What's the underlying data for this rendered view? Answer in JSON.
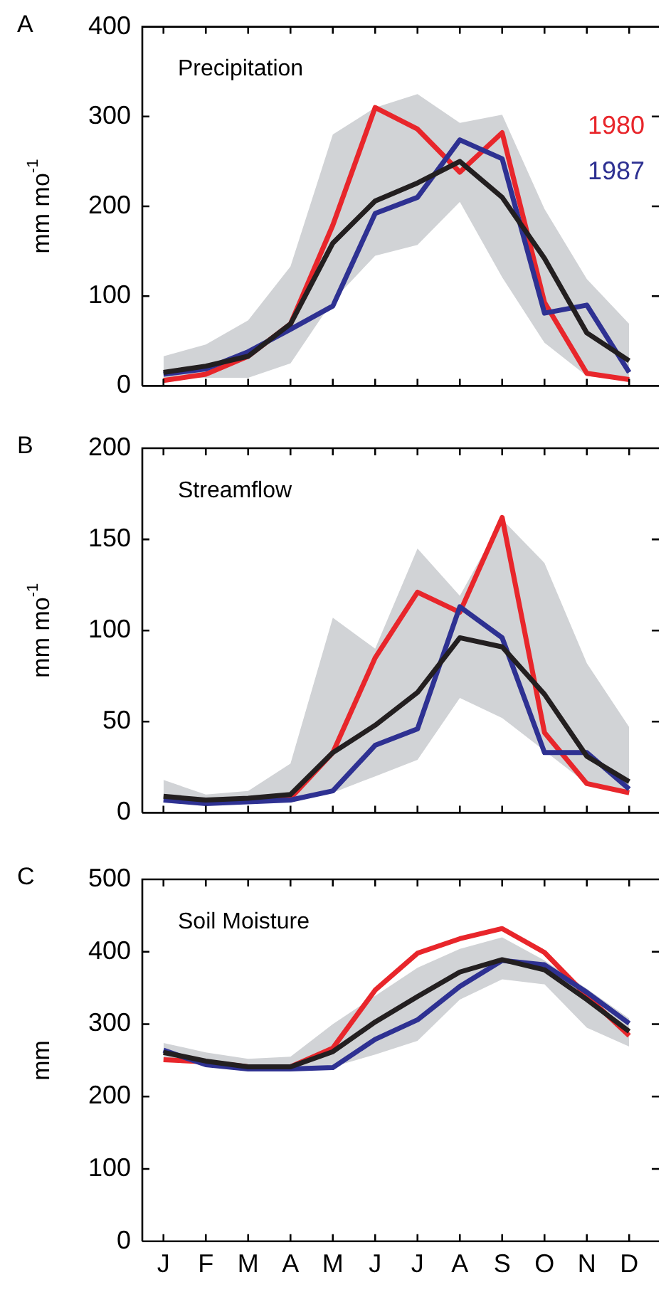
{
  "chart_data": [
    {
      "type": "line",
      "title": "Precipitation",
      "ylabel": "mm mo$^{-1}$",
      "annotations": [
        "A"
      ],
      "categories": [
        null,
        null,
        null,
        null,
        null,
        null,
        null,
        null,
        null,
        null,
        null,
        null
      ],
      "ylim": [
        0,
        400
      ],
      "yticks": [
        0,
        100,
        200,
        300,
        400
      ],
      "tick_labels": "y",
      "grid": false,
      "legend": false,
      "series": [
        {
          "name": "1980",
          "color": "#e8262b",
          "values": [
            6,
            13,
            33,
            69,
            179,
            310,
            286,
            238,
            282,
            93,
            14,
            7
          ]
        },
        {
          "name": "1987",
          "color": "#2e3192",
          "values": [
            13,
            19,
            38,
            63,
            89,
            192,
            210,
            274,
            253,
            81,
            90,
            15
          ]
        },
        {
          "color": "#231f20",
          "values": [
            15,
            22,
            33,
            69,
            159,
            206,
            226,
            250,
            210,
            142,
            59,
            28
          ],
          "lower": [
            9,
            9,
            9,
            25,
            95,
            145,
            157,
            205,
            121,
            48,
            11,
            6
          ],
          "upper": [
            33,
            46,
            73,
            133,
            280,
            310,
            325,
            293,
            302,
            197,
            119,
            69
          ]
        }
      ]
    },
    {
      "type": "line",
      "title": "Streamflow",
      "ylabel": "mm mo$^{-1}$",
      "annotations": [
        "B"
      ],
      "categories": [
        null,
        null,
        null,
        null,
        null,
        null,
        null,
        null,
        null,
        null,
        null,
        null
      ],
      "ylim": [
        0,
        200
      ],
      "yticks": [
        0,
        50,
        100,
        150,
        200
      ],
      "tick_labels": "y",
      "grid": false,
      "legend": false,
      "series": [
        {
          "color": "#e8262b",
          "values": [
            null,
            null,
            7,
            8,
            33,
            85,
            121,
            110,
            162,
            44,
            16,
            11
          ]
        },
        {
          "color": "#2e3192",
          "values": [
            7,
            5,
            6,
            7,
            12,
            37,
            46,
            113,
            96,
            33,
            33,
            13
          ]
        },
        {
          "color": "#231f20",
          "values": [
            9,
            7,
            8,
            10,
            33,
            48,
            66,
            96,
            91,
            65,
            31,
            17
          ],
          "lower": [
            6,
            5,
            5,
            7,
            11,
            20,
            29,
            63,
            52,
            34,
            16,
            10
          ],
          "upper": [
            18,
            10,
            12,
            27,
            107,
            90,
            145,
            119,
            161,
            137,
            82,
            47
          ]
        }
      ]
    },
    {
      "type": "line",
      "title": "Soil Moisture",
      "ylabel": "mm",
      "annotations": [
        "C"
      ],
      "categories": [
        "J",
        "F",
        "M",
        "A",
        "M",
        "J",
        "J",
        "A",
        "S",
        "O",
        "N",
        "D"
      ],
      "ylim": [
        0,
        500
      ],
      "yticks": [
        0,
        100,
        200,
        300,
        400,
        500
      ],
      "grid": false,
      "legend": false,
      "series": [
        {
          "color": "#e8262b",
          "values": [
            251,
            248,
            241,
            241,
            267,
            347,
            398,
            418,
            432,
            399,
            339,
            284
          ]
        },
        {
          "color": "#2e3192",
          "values": [
            264,
            244,
            238,
            238,
            240,
            279,
            306,
            352,
            388,
            382,
            344,
            301
          ]
        },
        {
          "color": "#231f20",
          "values": [
            261,
            249,
            241,
            241,
            262,
            303,
            338,
            372,
            389,
            375,
            334,
            290
          ],
          "lower": [
            250,
            244,
            236,
            236,
            241,
            258,
            277,
            334,
            362,
            355,
            295,
            269
          ],
          "upper": [
            274,
            261,
            252,
            255,
            300,
            339,
            378,
            404,
            420,
            388,
            349,
            308
          ]
        }
      ]
    }
  ]
}
